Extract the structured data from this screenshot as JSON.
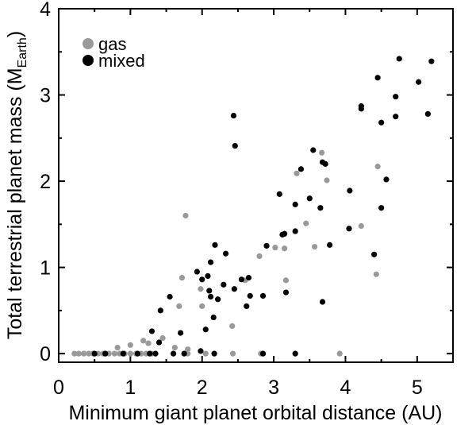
{
  "chart_data": {
    "type": "scatter",
    "title": "",
    "xlabel": "Minimum giant planet orbital distance (AU)",
    "ylabel_main": "Total terrestrial planet mass (M",
    "ylabel_sub": "Earth",
    "ylabel_close": ")",
    "xlim": [
      0,
      5.5
    ],
    "ylim": [
      -0.1,
      4.0
    ],
    "xticks": [
      0,
      1,
      2,
      3,
      4,
      5
    ],
    "xtick_labels": [
      "0",
      "1",
      "2",
      "3",
      "4",
      "5"
    ],
    "yticks": [
      0,
      1,
      2,
      3,
      4
    ],
    "ytick_labels": [
      "0",
      "1",
      "2",
      "3",
      "4"
    ],
    "grid": false,
    "legend_position": "top-left",
    "series": [
      {
        "name": "gas",
        "color": "#999999",
        "points": [
          [
            0.22,
            0.0
          ],
          [
            0.28,
            0.0
          ],
          [
            0.35,
            0.0
          ],
          [
            0.42,
            0.0
          ],
          [
            0.48,
            0.0
          ],
          [
            0.55,
            0.0
          ],
          [
            0.62,
            0.0
          ],
          [
            0.7,
            0.0
          ],
          [
            0.78,
            0.0
          ],
          [
            0.85,
            0.0
          ],
          [
            0.92,
            0.0
          ],
          [
            1.0,
            0.0
          ],
          [
            1.08,
            0.0
          ],
          [
            1.15,
            0.0
          ],
          [
            1.22,
            0.0
          ],
          [
            1.3,
            0.0
          ],
          [
            0.82,
            0.07
          ],
          [
            1.0,
            0.1
          ],
          [
            1.18,
            0.15
          ],
          [
            1.25,
            0.12
          ],
          [
            1.45,
            0.18
          ],
          [
            1.62,
            0.07
          ],
          [
            1.68,
            0.55
          ],
          [
            1.72,
            0.88
          ],
          [
            1.77,
            1.6
          ],
          [
            1.8,
            0.05
          ],
          [
            1.98,
            0.75
          ],
          [
            2.0,
            0.55
          ],
          [
            2.42,
            0.32
          ],
          [
            2.43,
            0.0
          ],
          [
            2.6,
            0.85
          ],
          [
            2.8,
            1.13
          ],
          [
            3.02,
            1.23
          ],
          [
            3.15,
            1.22
          ],
          [
            3.17,
            0.85
          ],
          [
            3.32,
            2.09
          ],
          [
            3.45,
            1.51
          ],
          [
            3.57,
            1.24
          ],
          [
            3.67,
            2.33
          ],
          [
            3.74,
            2.01
          ],
          [
            3.92,
            0.0
          ],
          [
            4.22,
            1.48
          ],
          [
            4.43,
            0.92
          ],
          [
            4.45,
            2.17
          ],
          [
            1.8,
            0.0
          ],
          [
            2.05,
            0.0
          ],
          [
            2.82,
            0.0
          ]
        ]
      },
      {
        "name": "mixed",
        "color": "#000000",
        "points": [
          [
            0.5,
            0.0
          ],
          [
            0.65,
            0.0
          ],
          [
            0.9,
            0.0
          ],
          [
            1.1,
            0.0
          ],
          [
            1.27,
            0.0
          ],
          [
            1.35,
            0.0
          ],
          [
            1.3,
            0.26
          ],
          [
            1.4,
            0.13
          ],
          [
            1.42,
            0.5
          ],
          [
            1.55,
            0.66
          ],
          [
            1.6,
            0.0
          ],
          [
            1.7,
            0.24
          ],
          [
            1.75,
            0.0
          ],
          [
            1.93,
            0.95
          ],
          [
            1.98,
            0.03
          ],
          [
            2.0,
            0.86
          ],
          [
            2.05,
            0.28
          ],
          [
            2.08,
            0.9
          ],
          [
            2.1,
            0.73
          ],
          [
            2.12,
            1.06
          ],
          [
            2.12,
            0.66
          ],
          [
            2.16,
            0.42
          ],
          [
            2.17,
            0.0
          ],
          [
            2.18,
            1.26
          ],
          [
            2.22,
            0.63
          ],
          [
            2.3,
            0.8
          ],
          [
            2.33,
            1.16
          ],
          [
            2.44,
            2.76
          ],
          [
            2.46,
            2.41
          ],
          [
            2.45,
            0.75
          ],
          [
            2.55,
            0.86
          ],
          [
            2.62,
            0.55
          ],
          [
            2.65,
            0.88
          ],
          [
            2.67,
            0.67
          ],
          [
            2.85,
            0.67
          ],
          [
            2.85,
            0.0
          ],
          [
            2.9,
            1.25
          ],
          [
            3.08,
            1.85
          ],
          [
            3.12,
            1.38
          ],
          [
            3.15,
            1.39
          ],
          [
            3.17,
            0.71
          ],
          [
            3.3,
            1.42
          ],
          [
            3.3,
            1.73
          ],
          [
            3.3,
            0.0
          ],
          [
            3.38,
            2.14
          ],
          [
            3.5,
            1.8
          ],
          [
            3.55,
            2.36
          ],
          [
            3.65,
            1.69
          ],
          [
            3.68,
            0.6
          ],
          [
            3.68,
            2.22
          ],
          [
            3.72,
            2.2
          ],
          [
            3.78,
            1.26
          ],
          [
            4.05,
            1.45
          ],
          [
            4.06,
            1.89
          ],
          [
            4.22,
            2.84
          ],
          [
            4.22,
            2.87
          ],
          [
            4.4,
            1.15
          ],
          [
            4.45,
            3.2
          ],
          [
            4.5,
            1.69
          ],
          [
            4.5,
            2.68
          ],
          [
            4.57,
            2.02
          ],
          [
            4.7,
            2.98
          ],
          [
            4.7,
            2.75
          ],
          [
            4.75,
            3.42
          ],
          [
            5.02,
            3.15
          ],
          [
            5.15,
            2.78
          ],
          [
            5.2,
            3.39
          ]
        ]
      }
    ]
  }
}
